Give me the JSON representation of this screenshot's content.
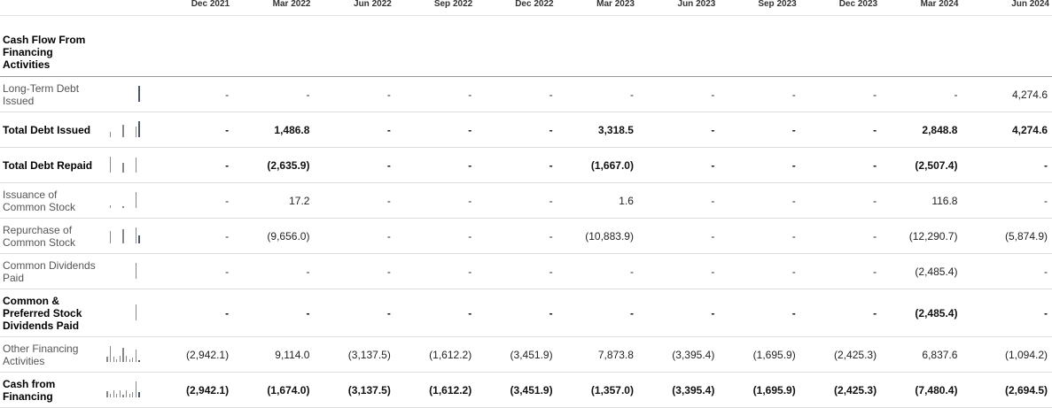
{
  "columns": [
    "Dec 2021",
    "Mar 2022",
    "Jun 2022",
    "Sep 2022",
    "Dec 2022",
    "Mar 2023",
    "Jun 2023",
    "Sep 2023",
    "Dec 2023",
    "Mar 2024",
    "Jun 2024"
  ],
  "section_title": "Cash Flow From Financing Activities",
  "rows": [
    {
      "label": "Long-Term Debt Issued",
      "bold": false,
      "values": [
        "-",
        "-",
        "-",
        "-",
        "-",
        "-",
        "-",
        "-",
        "-",
        "-",
        "4,274.6"
      ],
      "spark": [
        0,
        0,
        0,
        0,
        0,
        0,
        0,
        0,
        0,
        0,
        4274.6
      ]
    },
    {
      "label": "Total Debt Issued",
      "bold": true,
      "values": [
        "-",
        "1,486.8",
        "-",
        "-",
        "-",
        "3,318.5",
        "-",
        "-",
        "-",
        "2,848.8",
        "4,274.6"
      ],
      "spark": [
        0,
        1486.8,
        0,
        0,
        0,
        3318.5,
        0,
        0,
        0,
        2848.8,
        4274.6
      ]
    },
    {
      "label": "Total Debt Repaid",
      "bold": true,
      "values": [
        "-",
        "(2,635.9)",
        "-",
        "-",
        "-",
        "(1,667.0)",
        "-",
        "-",
        "-",
        "(2,507.4)",
        "-"
      ],
      "spark": [
        0,
        2635.9,
        0,
        0,
        0,
        1667.0,
        0,
        0,
        0,
        2507.4,
        0
      ]
    },
    {
      "label": "Issuance of Common Stock",
      "bold": false,
      "values": [
        "-",
        "17.2",
        "-",
        "-",
        "-",
        "1.6",
        "-",
        "-",
        "-",
        "116.8",
        "-"
      ],
      "spark": [
        0,
        17.2,
        0,
        0,
        0,
        1.6,
        0,
        0,
        0,
        116.8,
        0
      ]
    },
    {
      "label": "Repurchase of Common Stock",
      "bold": false,
      "values": [
        "-",
        "(9,656.0)",
        "-",
        "-",
        "-",
        "(10,883.9)",
        "-",
        "-",
        "-",
        "(12,290.7)",
        "(5,874.9)"
      ],
      "spark": [
        0,
        9656.0,
        0,
        0,
        0,
        10883.9,
        0,
        0,
        0,
        12290.7,
        5874.9
      ]
    },
    {
      "label": "Common Dividends Paid",
      "bold": false,
      "values": [
        "-",
        "-",
        "-",
        "-",
        "-",
        "-",
        "-",
        "-",
        "-",
        "(2,485.4)",
        "-"
      ],
      "spark": [
        0,
        0,
        0,
        0,
        0,
        0,
        0,
        0,
        0,
        2485.4,
        0
      ]
    },
    {
      "label": "Common & Preferred Stock Dividends Paid",
      "bold": true,
      "values": [
        "-",
        "-",
        "-",
        "-",
        "-",
        "-",
        "-",
        "-",
        "-",
        "(2,485.4)",
        "-"
      ],
      "spark": [
        0,
        0,
        0,
        0,
        0,
        0,
        0,
        0,
        0,
        2485.4,
        0
      ]
    },
    {
      "label": "Other Financing Activities",
      "bold": false,
      "values": [
        "(2,942.1)",
        "9,114.0",
        "(3,137.5)",
        "(1,612.2)",
        "(3,451.9)",
        "7,873.8",
        "(3,395.4)",
        "(1,695.9)",
        "(2,425.3)",
        "6,837.6",
        "(1,094.2)"
      ],
      "spark": [
        2942.1,
        9114.0,
        3137.5,
        1612.2,
        3451.9,
        7873.8,
        3395.4,
        1695.9,
        2425.3,
        6837.6,
        1094.2
      ]
    },
    {
      "label": "Cash from Financing",
      "bold": true,
      "values": [
        "(2,942.1)",
        "(1,674.0)",
        "(3,137.5)",
        "(1,612.2)",
        "(3,451.9)",
        "(1,357.0)",
        "(3,395.4)",
        "(1,695.9)",
        "(2,425.3)",
        "(7,480.4)",
        "(2,694.5)"
      ],
      "spark": [
        2942.1,
        1674.0,
        3137.5,
        1612.2,
        3451.9,
        1357.0,
        3395.4,
        1695.9,
        2425.3,
        7480.4,
        2694.5
      ]
    }
  ]
}
